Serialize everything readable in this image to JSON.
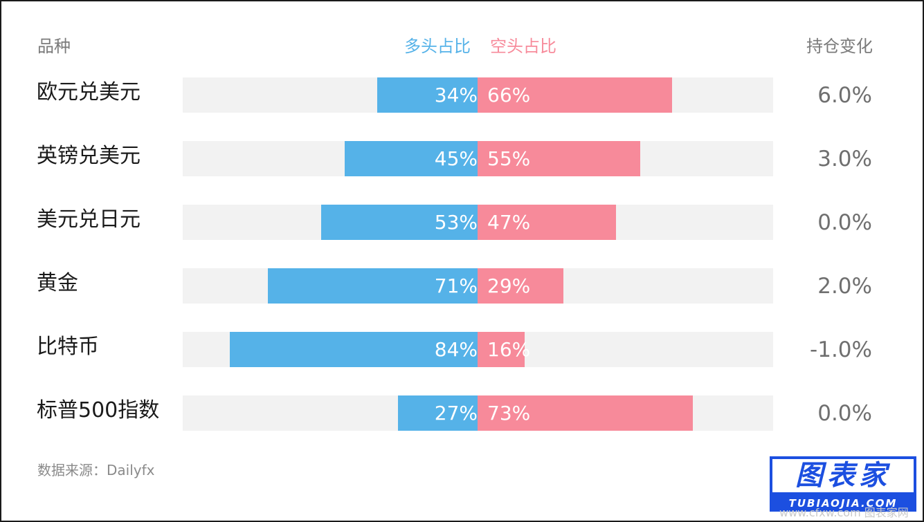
{
  "header": {
    "category": "品种",
    "long": "多头占比",
    "short": "空头占比",
    "change": "持仓变化"
  },
  "colors": {
    "long": "#55b2e8",
    "short": "#f78a9a",
    "track": "#f2f2f2",
    "brand": "#1c4fe0"
  },
  "chart_data": {
    "type": "bar",
    "categories": [
      "欧元兑美元",
      "英镑兑美元",
      "美元兑日元",
      "黄金",
      "比特币",
      "标普500指数"
    ],
    "series": [
      {
        "name": "多头占比",
        "values": [
          34,
          45,
          53,
          71,
          84,
          27
        ],
        "labels": [
          "34%",
          "45%",
          "53%",
          "71%",
          "84%",
          "27%"
        ]
      },
      {
        "name": "空头占比",
        "values": [
          66,
          55,
          47,
          29,
          16,
          73
        ],
        "labels": [
          "66%",
          "55%",
          "47%",
          "29%",
          "16%",
          "73%"
        ]
      }
    ],
    "position_change": [
      "6.0%",
      "3.0%",
      "0.0%",
      "2.0%",
      "-1.0%",
      "0.0%"
    ],
    "xlim": [
      -100,
      100
    ]
  },
  "source": "数据来源：Dailyfx",
  "logo": {
    "main": "图表家",
    "sub": "TUBIAOJIA.COM"
  },
  "watermark": "www.cfxw.com 图表家网"
}
